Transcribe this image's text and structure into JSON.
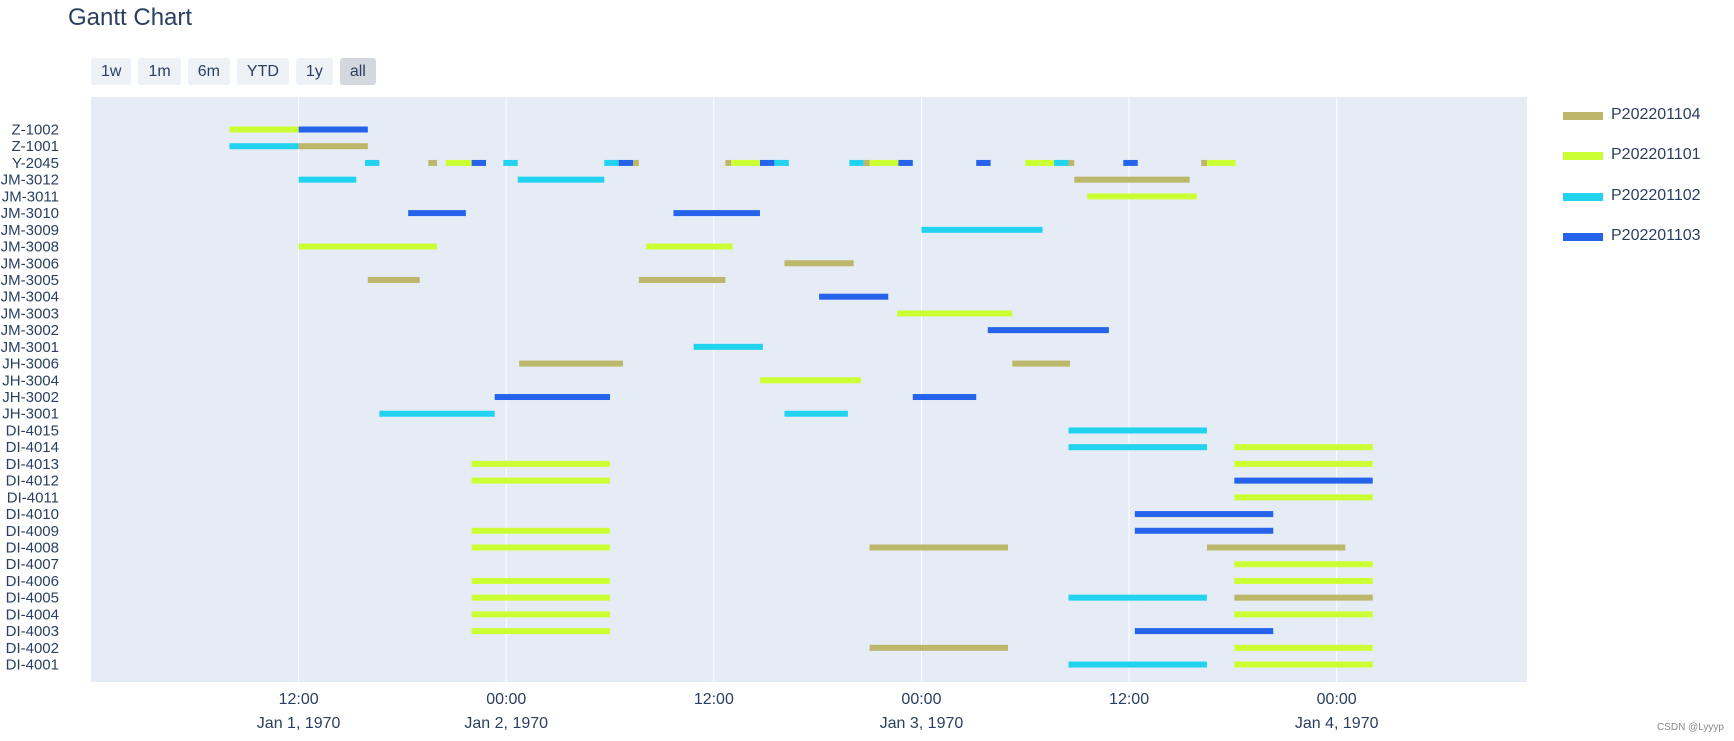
{
  "title": "Gantt Chart",
  "range_selector": [
    "1w",
    "1m",
    "6m",
    "YTD",
    "1y",
    "all"
  ],
  "range_selector_active": "all",
  "credit": "CSDN @Lyyyp",
  "colors": {
    "plot_bg": "#e5ecf6",
    "P202201104": "#bdb76b",
    "P202201101": "#ccff33",
    "P202201102": "#22d3f0",
    "P202201103": "#2563eb"
  },
  "chart_data": {
    "type": "gantt",
    "title": "Gantt Chart",
    "xlabel": "",
    "ylabel": "",
    "x_range": [
      "1970-01-01T00:00",
      "1970-01-04T11:00"
    ],
    "x_ticks": [
      {
        "at": "1970-01-01T12:00",
        "time": "12:00",
        "date": "Jan 1, 1970"
      },
      {
        "at": "1970-01-02T00:00",
        "time": "00:00",
        "date": "Jan 2, 1970"
      },
      {
        "at": "1970-01-02T12:00",
        "time": "12:00",
        "date": ""
      },
      {
        "at": "1970-01-03T00:00",
        "time": "00:00",
        "date": "Jan 3, 1970"
      },
      {
        "at": "1970-01-03T12:00",
        "time": "12:00",
        "date": ""
      },
      {
        "at": "1970-01-04T00:00",
        "time": "00:00",
        "date": "Jan 4, 1970"
      }
    ],
    "legend_placement": "right",
    "legend": [
      "P202201104",
      "P202201101",
      "P202201102",
      "P202201103"
    ],
    "rows": [
      "Z-1002",
      "Z-1001",
      "Y-2045",
      "JM-3012",
      "JM-3011",
      "JM-3010",
      "JM-3009",
      "JM-3008",
      "JM-3006",
      "JM-3005",
      "JM-3004",
      "JM-3003",
      "JM-3002",
      "JM-3001",
      "JH-3006",
      "JH-3004",
      "JH-3002",
      "JH-3001",
      "DI-4015",
      "DI-4014",
      "DI-4013",
      "DI-4012",
      "DI-4011",
      "DI-4010",
      "DI-4009",
      "DI-4008",
      "DI-4007",
      "DI-4006",
      "DI-4005",
      "DI-4004",
      "DI-4003",
      "DI-4002",
      "DI-4001"
    ],
    "tasks": [
      {
        "row": "Z-1002",
        "series": "P202201101",
        "start": "1970-01-01T08:00",
        "end": "1970-01-01T12:00"
      },
      {
        "row": "Z-1002",
        "series": "P202201103",
        "start": "1970-01-01T12:00",
        "end": "1970-01-01T16:00"
      },
      {
        "row": "Z-1001",
        "series": "P202201102",
        "start": "1970-01-01T08:00",
        "end": "1970-01-01T12:00"
      },
      {
        "row": "Z-1001",
        "series": "P202201104",
        "start": "1970-01-01T12:00",
        "end": "1970-01-01T16:00"
      },
      {
        "row": "Y-2045",
        "series": "P202201102",
        "start": "1970-01-01T15:50",
        "end": "1970-01-01T16:40"
      },
      {
        "row": "Y-2045",
        "series": "P202201104",
        "start": "1970-01-01T19:30",
        "end": "1970-01-01T20:00"
      },
      {
        "row": "Y-2045",
        "series": "P202201101",
        "start": "1970-01-01T20:30",
        "end": "1970-01-01T22:00"
      },
      {
        "row": "Y-2045",
        "series": "P202201103",
        "start": "1970-01-01T22:00",
        "end": "1970-01-01T22:50"
      },
      {
        "row": "Y-2045",
        "series": "P202201102",
        "start": "1970-01-01T23:50",
        "end": "1970-01-02T00:40"
      },
      {
        "row": "Y-2045",
        "series": "P202201102",
        "start": "1970-01-02T05:40",
        "end": "1970-01-02T06:30"
      },
      {
        "row": "Y-2045",
        "series": "P202201103",
        "start": "1970-01-02T06:30",
        "end": "1970-01-02T07:20"
      },
      {
        "row": "Y-2045",
        "series": "P202201104",
        "start": "1970-01-02T07:20",
        "end": "1970-01-02T07:40"
      },
      {
        "row": "Y-2045",
        "series": "P202201104",
        "start": "1970-01-02T12:40",
        "end": "1970-01-02T13:00"
      },
      {
        "row": "Y-2045",
        "series": "P202201101",
        "start": "1970-01-02T13:00",
        "end": "1970-01-02T14:40"
      },
      {
        "row": "Y-2045",
        "series": "P202201103",
        "start": "1970-01-02T14:40",
        "end": "1970-01-02T15:30"
      },
      {
        "row": "Y-2045",
        "series": "P202201102",
        "start": "1970-01-02T15:30",
        "end": "1970-01-02T16:20"
      },
      {
        "row": "Y-2045",
        "series": "P202201102",
        "start": "1970-01-02T19:50",
        "end": "1970-01-02T20:40"
      },
      {
        "row": "Y-2045",
        "series": "P202201104",
        "start": "1970-01-02T20:40",
        "end": "1970-01-02T21:00"
      },
      {
        "row": "Y-2045",
        "series": "P202201101",
        "start": "1970-01-02T21:00",
        "end": "1970-01-02T22:40"
      },
      {
        "row": "Y-2045",
        "series": "P202201103",
        "start": "1970-01-02T22:40",
        "end": "1970-01-02T23:30"
      },
      {
        "row": "Y-2045",
        "series": "P202201103",
        "start": "1970-01-03T03:10",
        "end": "1970-01-03T04:00"
      },
      {
        "row": "Y-2045",
        "series": "P202201101",
        "start": "1970-01-03T06:00",
        "end": "1970-01-03T07:40"
      },
      {
        "row": "Y-2045",
        "series": "P202201102",
        "start": "1970-01-03T07:40",
        "end": "1970-01-03T08:30"
      },
      {
        "row": "Y-2045",
        "series": "P202201104",
        "start": "1970-01-03T08:30",
        "end": "1970-01-03T08:50"
      },
      {
        "row": "Y-2045",
        "series": "P202201103",
        "start": "1970-01-03T11:40",
        "end": "1970-01-03T12:30"
      },
      {
        "row": "Y-2045",
        "series": "P202201104",
        "start": "1970-01-03T16:10",
        "end": "1970-01-03T16:30"
      },
      {
        "row": "Y-2045",
        "series": "P202201101",
        "start": "1970-01-03T16:30",
        "end": "1970-01-03T18:10"
      },
      {
        "row": "JM-3012",
        "series": "P202201102",
        "start": "1970-01-01T12:00",
        "end": "1970-01-01T15:20"
      },
      {
        "row": "JM-3012",
        "series": "P202201102",
        "start": "1970-01-02T00:40",
        "end": "1970-01-02T05:40"
      },
      {
        "row": "JM-3012",
        "series": "P202201104",
        "start": "1970-01-03T08:50",
        "end": "1970-01-03T15:30"
      },
      {
        "row": "JM-3011",
        "series": "P202201101",
        "start": "1970-01-03T09:35",
        "end": "1970-01-03T15:55"
      },
      {
        "row": "JM-3010",
        "series": "P202201103",
        "start": "1970-01-01T18:20",
        "end": "1970-01-01T21:40"
      },
      {
        "row": "JM-3010",
        "series": "P202201103",
        "start": "1970-01-02T09:40",
        "end": "1970-01-02T14:40"
      },
      {
        "row": "JM-3009",
        "series": "P202201102",
        "start": "1970-01-03T00:00",
        "end": "1970-01-03T07:00"
      },
      {
        "row": "JM-3008",
        "series": "P202201101",
        "start": "1970-01-01T12:00",
        "end": "1970-01-01T20:00"
      },
      {
        "row": "JM-3008",
        "series": "P202201101",
        "start": "1970-01-02T08:05",
        "end": "1970-01-02T13:05"
      },
      {
        "row": "JM-3006",
        "series": "P202201104",
        "start": "1970-01-02T16:05",
        "end": "1970-01-02T20:05"
      },
      {
        "row": "JM-3005",
        "series": "P202201104",
        "start": "1970-01-01T16:00",
        "end": "1970-01-01T19:00"
      },
      {
        "row": "JM-3005",
        "series": "P202201104",
        "start": "1970-01-02T07:40",
        "end": "1970-01-02T12:40"
      },
      {
        "row": "JM-3004",
        "series": "P202201103",
        "start": "1970-01-02T18:05",
        "end": "1970-01-02T22:05"
      },
      {
        "row": "JM-3003",
        "series": "P202201101",
        "start": "1970-01-02T22:35",
        "end": "1970-01-03T05:15"
      },
      {
        "row": "JM-3002",
        "series": "P202201103",
        "start": "1970-01-03T03:50",
        "end": "1970-01-03T10:50"
      },
      {
        "row": "JM-3001",
        "series": "P202201102",
        "start": "1970-01-02T10:50",
        "end": "1970-01-02T14:50"
      },
      {
        "row": "JH-3006",
        "series": "P202201104",
        "start": "1970-01-02T00:45",
        "end": "1970-01-02T06:45"
      },
      {
        "row": "JH-3006",
        "series": "P202201104",
        "start": "1970-01-03T05:15",
        "end": "1970-01-03T08:35"
      },
      {
        "row": "JH-3004",
        "series": "P202201101",
        "start": "1970-01-02T14:40",
        "end": "1970-01-02T20:30"
      },
      {
        "row": "JH-3002",
        "series": "P202201103",
        "start": "1970-01-01T23:20",
        "end": "1970-01-02T06:00"
      },
      {
        "row": "JH-3002",
        "series": "P202201103",
        "start": "1970-01-02T23:30",
        "end": "1970-01-03T03:10"
      },
      {
        "row": "JH-3001",
        "series": "P202201102",
        "start": "1970-01-01T16:40",
        "end": "1970-01-01T23:20"
      },
      {
        "row": "JH-3001",
        "series": "P202201102",
        "start": "1970-01-02T16:05",
        "end": "1970-01-02T19:45"
      },
      {
        "row": "DI-4015",
        "series": "P202201102",
        "start": "1970-01-03T08:30",
        "end": "1970-01-03T16:30"
      },
      {
        "row": "DI-4014",
        "series": "P202201102",
        "start": "1970-01-03T08:30",
        "end": "1970-01-03T16:30"
      },
      {
        "row": "DI-4014",
        "series": "P202201101",
        "start": "1970-01-03T18:05",
        "end": "1970-01-04T02:05"
      },
      {
        "row": "DI-4013",
        "series": "P202201101",
        "start": "1970-01-01T22:00",
        "end": "1970-01-02T06:00"
      },
      {
        "row": "DI-4013",
        "series": "P202201101",
        "start": "1970-01-03T18:05",
        "end": "1970-01-04T02:05"
      },
      {
        "row": "DI-4012",
        "series": "P202201101",
        "start": "1970-01-01T22:00",
        "end": "1970-01-02T06:00"
      },
      {
        "row": "DI-4012",
        "series": "P202201103",
        "start": "1970-01-03T18:05",
        "end": "1970-01-04T02:05"
      },
      {
        "row": "DI-4011",
        "series": "P202201101",
        "start": "1970-01-03T18:05",
        "end": "1970-01-04T02:05"
      },
      {
        "row": "DI-4010",
        "series": "P202201103",
        "start": "1970-01-03T12:20",
        "end": "1970-01-03T20:20"
      },
      {
        "row": "DI-4009",
        "series": "P202201101",
        "start": "1970-01-01T22:00",
        "end": "1970-01-02T06:00"
      },
      {
        "row": "DI-4009",
        "series": "P202201103",
        "start": "1970-01-03T12:20",
        "end": "1970-01-03T20:20"
      },
      {
        "row": "DI-4008",
        "series": "P202201101",
        "start": "1970-01-01T22:00",
        "end": "1970-01-02T06:00"
      },
      {
        "row": "DI-4008",
        "series": "P202201104",
        "start": "1970-01-02T21:00",
        "end": "1970-01-03T05:00"
      },
      {
        "row": "DI-4008",
        "series": "P202201104",
        "start": "1970-01-03T16:30",
        "end": "1970-01-04T00:30"
      },
      {
        "row": "DI-4007",
        "series": "P202201101",
        "start": "1970-01-03T18:05",
        "end": "1970-01-04T02:05"
      },
      {
        "row": "DI-4006",
        "series": "P202201101",
        "start": "1970-01-01T22:00",
        "end": "1970-01-02T06:00"
      },
      {
        "row": "DI-4006",
        "series": "P202201101",
        "start": "1970-01-03T18:05",
        "end": "1970-01-04T02:05"
      },
      {
        "row": "DI-4005",
        "series": "P202201101",
        "start": "1970-01-01T22:00",
        "end": "1970-01-02T06:00"
      },
      {
        "row": "DI-4005",
        "series": "P202201102",
        "start": "1970-01-03T08:30",
        "end": "1970-01-03T16:30"
      },
      {
        "row": "DI-4005",
        "series": "P202201104",
        "start": "1970-01-03T18:05",
        "end": "1970-01-04T02:05"
      },
      {
        "row": "DI-4004",
        "series": "P202201101",
        "start": "1970-01-01T22:00",
        "end": "1970-01-02T06:00"
      },
      {
        "row": "DI-4004",
        "series": "P202201101",
        "start": "1970-01-03T18:05",
        "end": "1970-01-04T02:05"
      },
      {
        "row": "DI-4003",
        "series": "P202201101",
        "start": "1970-01-01T22:00",
        "end": "1970-01-02T06:00"
      },
      {
        "row": "DI-4003",
        "series": "P202201103",
        "start": "1970-01-03T12:20",
        "end": "1970-01-03T20:20"
      },
      {
        "row": "DI-4002",
        "series": "P202201104",
        "start": "1970-01-02T21:00",
        "end": "1970-01-03T05:00"
      },
      {
        "row": "DI-4002",
        "series": "P202201101",
        "start": "1970-01-03T18:05",
        "end": "1970-01-04T02:05"
      },
      {
        "row": "DI-4001",
        "series": "P202201102",
        "start": "1970-01-03T08:30",
        "end": "1970-01-03T16:30"
      },
      {
        "row": "DI-4001",
        "series": "P202201101",
        "start": "1970-01-03T18:05",
        "end": "1970-01-04T02:05"
      }
    ]
  }
}
